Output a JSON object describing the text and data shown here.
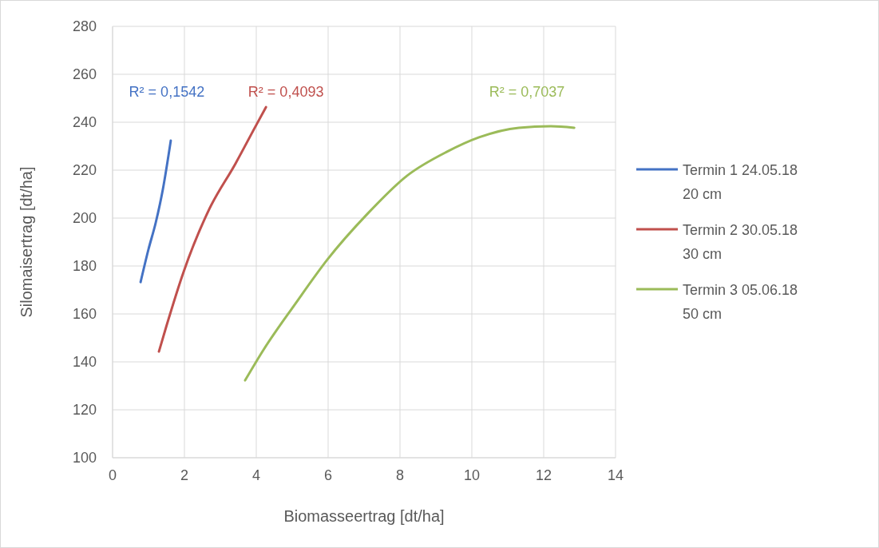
{
  "chart_data": {
    "type": "line",
    "xlabel": "Biomasseertrag [dt/ha]",
    "ylabel": "Silomaisertrag [dt/ha]",
    "xlim": [
      0,
      14
    ],
    "xticks": [
      0,
      2,
      4,
      6,
      8,
      10,
      12,
      14
    ],
    "ylim": [
      100,
      280
    ],
    "yticks": [
      100,
      120,
      140,
      160,
      180,
      200,
      220,
      240,
      260,
      280
    ],
    "grid": true,
    "legend": "right",
    "marker": "none",
    "line_style": "solid",
    "series": [
      {
        "name": "Termin 1 24.05.18 20 cm",
        "color": "#4472c4",
        "x": [
          0.78,
          1.0,
          1.2,
          1.4,
          1.62
        ],
        "values": [
          173.3,
          187,
          198,
          212,
          232.3
        ]
      },
      {
        "name": "Termin 2 30.05.18 30 cm",
        "color": "#c0504d",
        "x": [
          1.29,
          1.5,
          1.98,
          2.69,
          3.42,
          3.98,
          4.27
        ],
        "values": [
          144.3,
          155,
          177.7,
          203.7,
          222.7,
          238.3,
          246.3
        ]
      },
      {
        "name": "Termin 3 05.06.18 50 cm",
        "color": "#9bbb59",
        "x": [
          3.69,
          4.2,
          5.09,
          5.98,
          7.09,
          8.2,
          9.31,
          10.2,
          11.31,
          12.2,
          12.85
        ],
        "values": [
          132.3,
          145,
          164.3,
          182.7,
          201.7,
          217.7,
          227.7,
          233.7,
          237.7,
          238.3,
          237.7
        ]
      }
    ],
    "annotations": [
      "R² = 0,1542",
      "R² = 0,4093",
      "R² = 0,7037"
    ]
  }
}
